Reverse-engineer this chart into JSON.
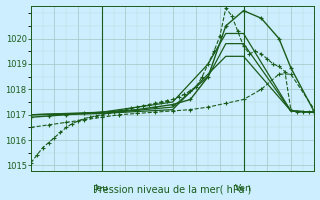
{
  "xlabel": "Pression niveau de la mer( hPa )",
  "bg_color": "#cceeff",
  "grid_color_major": "#aacccc",
  "grid_color_minor": "#bbdddd",
  "line_color": "#1a5c1a",
  "ylim": [
    1014.8,
    1021.3
  ],
  "yticks": [
    1015,
    1016,
    1017,
    1018,
    1019,
    1020
  ],
  "xlim": [
    0,
    48
  ],
  "jeu_x": 12,
  "ven_x": 36,
  "series": [
    {
      "x": [
        0,
        1,
        2,
        3,
        4,
        5,
        6,
        7,
        8,
        9,
        10,
        11,
        12,
        13,
        14,
        15,
        16,
        17,
        18,
        19,
        20,
        21,
        22,
        23,
        24,
        25,
        26,
        27,
        28,
        29,
        30,
        31,
        32,
        33,
        34,
        35,
        36,
        37,
        38,
        39,
        40,
        41,
        42,
        43,
        44,
        45,
        46,
        47,
        48
      ],
      "y": [
        1015.1,
        1015.4,
        1015.7,
        1015.9,
        1016.1,
        1016.3,
        1016.5,
        1016.65,
        1016.75,
        1016.85,
        1016.9,
        1016.95,
        1017.0,
        1017.05,
        1017.1,
        1017.15,
        1017.2,
        1017.25,
        1017.3,
        1017.35,
        1017.4,
        1017.45,
        1017.5,
        1017.55,
        1017.6,
        1017.7,
        1017.8,
        1017.95,
        1018.1,
        1018.5,
        1019.0,
        1019.5,
        1020.1,
        1021.2,
        1020.9,
        1020.3,
        1019.7,
        1019.4,
        1019.5,
        1019.4,
        1019.2,
        1019.0,
        1018.9,
        1018.7,
        1017.2,
        1017.1,
        1017.1,
        1017.1,
        1017.1
      ],
      "style": "dotted_marker",
      "lw": 0.8
    },
    {
      "x": [
        0,
        12,
        24,
        33,
        36,
        44,
        48
      ],
      "y": [
        1017.0,
        1017.05,
        1017.2,
        1019.3,
        1019.3,
        1017.15,
        1017.1
      ],
      "style": "solid",
      "lw": 0.9
    },
    {
      "x": [
        0,
        12,
        24,
        30,
        33,
        36,
        44,
        48
      ],
      "y": [
        1017.0,
        1017.05,
        1017.3,
        1018.5,
        1019.8,
        1019.8,
        1017.15,
        1017.1
      ],
      "style": "solid",
      "lw": 0.9
    },
    {
      "x": [
        0,
        12,
        24,
        30,
        33,
        36,
        44,
        48
      ],
      "y": [
        1017.0,
        1017.1,
        1017.5,
        1019.0,
        1020.2,
        1020.2,
        1017.15,
        1017.1
      ],
      "style": "solid",
      "lw": 0.9
    },
    {
      "x": [
        0,
        3,
        6,
        9,
        12,
        15,
        18,
        21,
        24,
        27,
        30,
        33,
        36,
        39,
        42,
        44,
        48
      ],
      "y": [
        1016.5,
        1016.6,
        1016.7,
        1016.8,
        1016.9,
        1017.0,
        1017.05,
        1017.1,
        1017.15,
        1017.2,
        1017.3,
        1017.45,
        1017.6,
        1018.0,
        1018.6,
        1018.6,
        1017.2
      ],
      "style": "dashed_marker",
      "lw": 0.8
    },
    {
      "x": [
        0,
        3,
        6,
        9,
        12,
        15,
        18,
        21,
        24,
        27,
        30,
        33,
        36,
        39,
        42,
        44,
        48
      ],
      "y": [
        1016.9,
        1016.95,
        1017.0,
        1017.05,
        1017.1,
        1017.15,
        1017.2,
        1017.3,
        1017.4,
        1017.6,
        1018.5,
        1020.5,
        1021.1,
        1020.8,
        1020.0,
        1018.85,
        1017.1
      ],
      "style": "solid_marker",
      "lw": 1.0
    }
  ]
}
